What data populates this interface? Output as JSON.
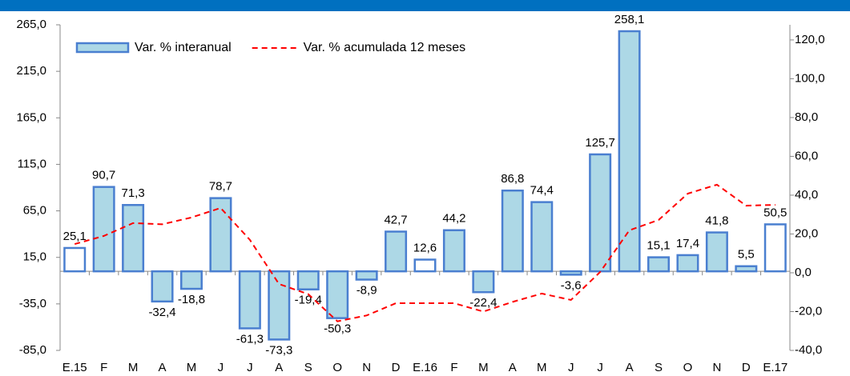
{
  "chart_data": {
    "type": "bar_line",
    "categories": [
      "E.15",
      "F",
      "M",
      "A",
      "M",
      "J",
      "J",
      "A",
      "S",
      "O",
      "N",
      "D",
      "E.16",
      "F",
      "M",
      "A",
      "M",
      "J",
      "J",
      "A",
      "S",
      "O",
      "N",
      "D",
      "E.17"
    ],
    "series": [
      {
        "name": "Var. % interanual",
        "type": "bar",
        "color": "#add8e6",
        "edge_color": "#4a7fd0",
        "bar_colors": [
          "#ffffff",
          "#add8e6",
          "#add8e6",
          "#add8e6",
          "#add8e6",
          "#add8e6",
          "#add8e6",
          "#add8e6",
          "#add8e6",
          "#add8e6",
          "#add8e6",
          "#add8e6",
          "#ffffff",
          "#add8e6",
          "#add8e6",
          "#add8e6",
          "#add8e6",
          "#add8e6",
          "#add8e6",
          "#add8e6",
          "#add8e6",
          "#add8e6",
          "#add8e6",
          "#add8e6",
          "#ffffff"
        ],
        "values": [
          25.1,
          90.7,
          71.3,
          -32.4,
          -18.8,
          78.7,
          -61.3,
          -73.3,
          -19.4,
          -50.3,
          -8.9,
          42.7,
          12.6,
          44.2,
          -22.4,
          86.8,
          74.4,
          -3.6,
          125.7,
          258.1,
          15.1,
          17.4,
          41.8,
          5.5,
          50.5
        ],
        "value_labels": [
          "25,1",
          "90,7",
          "71,3",
          "-32,4",
          "-18,8",
          "78,7",
          "-61,3",
          "-73,3",
          "-19,4",
          "-50,3",
          "-8,9",
          "42,7",
          "12,6",
          "44,2",
          "-22,4",
          "86,8",
          "74,4",
          "-3,6",
          "125,7",
          "258,1",
          "15,1",
          "17,4",
          "41,8",
          "5,5",
          "50,5"
        ]
      },
      {
        "name": "Var. % acumulada 12 meses",
        "type": "line",
        "axis": "y2",
        "color": "#ff0000",
        "dashed": true,
        "values": [
          14.8,
          19,
          25.6,
          25,
          28.5,
          33.4,
          17,
          -5.8,
          -11,
          -25,
          -22,
          -15.7,
          -15.7,
          -15.7,
          -20,
          -15,
          -10.7,
          -14,
          0.4,
          21.9,
          27.2,
          40.8,
          45.4,
          34.6,
          35
        ]
      }
    ],
    "ylim": [
      -85,
      265
    ],
    "yticks": [
      {
        "value": -85,
        "label": "-85,0"
      },
      {
        "value": -35,
        "label": "-35,0"
      },
      {
        "value": 15,
        "label": "15,0"
      },
      {
        "value": 65,
        "label": "65,0"
      },
      {
        "value": 115,
        "label": "115,0"
      },
      {
        "value": 165,
        "label": "165,0"
      },
      {
        "value": 215,
        "label": "215,0"
      },
      {
        "value": 265,
        "label": "265,0"
      }
    ],
    "y2lim": [
      -40,
      127.8
    ],
    "y2ticks": [
      {
        "value": -40,
        "label": "-40,0"
      },
      {
        "value": -20,
        "label": "-20,0"
      },
      {
        "value": 0,
        "label": "0,0"
      },
      {
        "value": 20,
        "label": "20,0"
      },
      {
        "value": 40,
        "label": "40,0"
      },
      {
        "value": 60,
        "label": "60,0"
      },
      {
        "value": 80,
        "label": "80,0"
      },
      {
        "value": 100,
        "label": "100,0"
      },
      {
        "value": 120,
        "label": "120,0"
      }
    ]
  }
}
